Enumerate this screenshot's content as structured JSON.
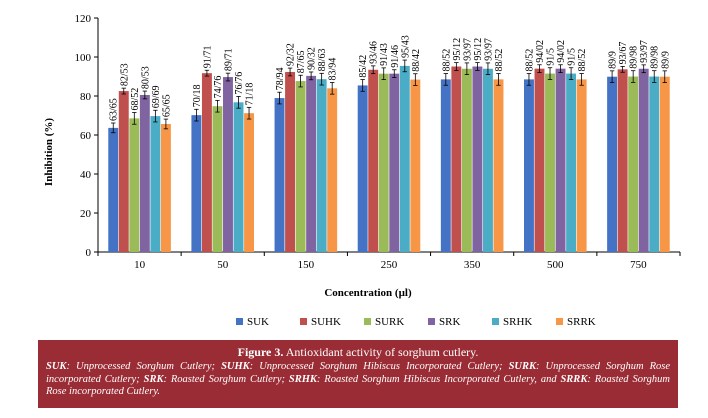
{
  "chart_data": {
    "type": "bar",
    "categories": [
      "10",
      "50",
      "150",
      "250",
      "350",
      "500",
      "750"
    ],
    "ylabel": "Inhibition (%)",
    "xlabel": "Concentration (µl)",
    "ylim": [
      0,
      120
    ],
    "yticks": [
      "0",
      "20",
      "40",
      "60",
      "80",
      "100",
      "120"
    ],
    "legend_position": "bottom",
    "grid": false,
    "series": [
      {
        "name": "SUK",
        "color": "#4472c4",
        "values": [
          63.65,
          70.18,
          78.94,
          85.42,
          88.52,
          88.52,
          89.9
        ],
        "labels": [
          "63/65",
          "70/18",
          "78/94",
          "85/42",
          "88/52",
          "88/52",
          "89/9"
        ],
        "errors": [
          2.5,
          3,
          3,
          3,
          3,
          3,
          3
        ]
      },
      {
        "name": "SUHK",
        "color": "#c0504d",
        "values": [
          82.53,
          91.71,
          92.32,
          93.46,
          95.12,
          94.02,
          93.67
        ],
        "labels": [
          "82/53",
          "91/71",
          "92/32",
          "93/46",
          "95/12",
          "94/02",
          "93/67"
        ],
        "errors": [
          1.5,
          1.5,
          2,
          2,
          2,
          2,
          1.5
        ]
      },
      {
        "name": "SURK",
        "color": "#9bbb59",
        "values": [
          68.52,
          74.76,
          87.65,
          91.43,
          93.97,
          91.5,
          89.98
        ],
        "labels": [
          "68/52",
          "74/76",
          "87/65",
          "91/43",
          "93/97",
          "91/5",
          "89/98"
        ],
        "errors": [
          3,
          3,
          3,
          3,
          3,
          3,
          3
        ]
      },
      {
        "name": "SRK",
        "color": "#8064a2",
        "values": [
          80.53,
          89.71,
          90.32,
          91.46,
          95.12,
          94.02,
          93.97
        ],
        "labels": [
          "80/53",
          "89/71",
          "90/32",
          "91/46",
          "95/12",
          "94/02",
          "93/97"
        ],
        "errors": [
          2,
          2,
          2,
          2,
          2,
          2,
          2
        ]
      },
      {
        "name": "SRHK",
        "color": "#4bacc6",
        "values": [
          69.69,
          76.76,
          88.63,
          95.43,
          93.97,
          91.5,
          89.98
        ],
        "labels": [
          "69/69",
          "76/76",
          "88/63",
          "95/43",
          "93/97",
          "91/5",
          "89/98"
        ],
        "errors": [
          3,
          3,
          3,
          3,
          3,
          3,
          3
        ]
      },
      {
        "name": "SRRK",
        "color": "#f79646",
        "values": [
          65.65,
          71.18,
          83.94,
          88.42,
          88.52,
          88.52,
          89.9
        ],
        "labels": [
          "65/65",
          "71/18",
          "83/94",
          "88/42",
          "88/52",
          "88/52",
          "89/9"
        ],
        "errors": [
          2.5,
          3,
          3,
          3,
          3,
          3,
          3
        ]
      }
    ]
  },
  "caption": {
    "title_bold": "Figure 3.",
    "title_rest": " Antioxidant activity of sorghum cutlery.",
    "items": [
      {
        "abbr": "SUK",
        "desc": ": Unprocessed Sorghum Cutlery; "
      },
      {
        "abbr": "SUHK",
        "desc": ": Unprocessed Sorghum Hibiscus Incorporated Cutlery; "
      },
      {
        "abbr": "SURK",
        "desc": ": Unprocessed Sorghum Rose incorporated Cutlery; "
      },
      {
        "abbr": "SRK",
        "desc": ": Roasted Sorghum Cutlery; "
      },
      {
        "abbr": "SRHK",
        "desc": ": Roasted Sorghum Hibiscus Incorporated Cutlery, and "
      },
      {
        "abbr": "SRRK",
        "desc": ": Roasted Sorghum Rose incorporated Cutlery."
      }
    ]
  }
}
